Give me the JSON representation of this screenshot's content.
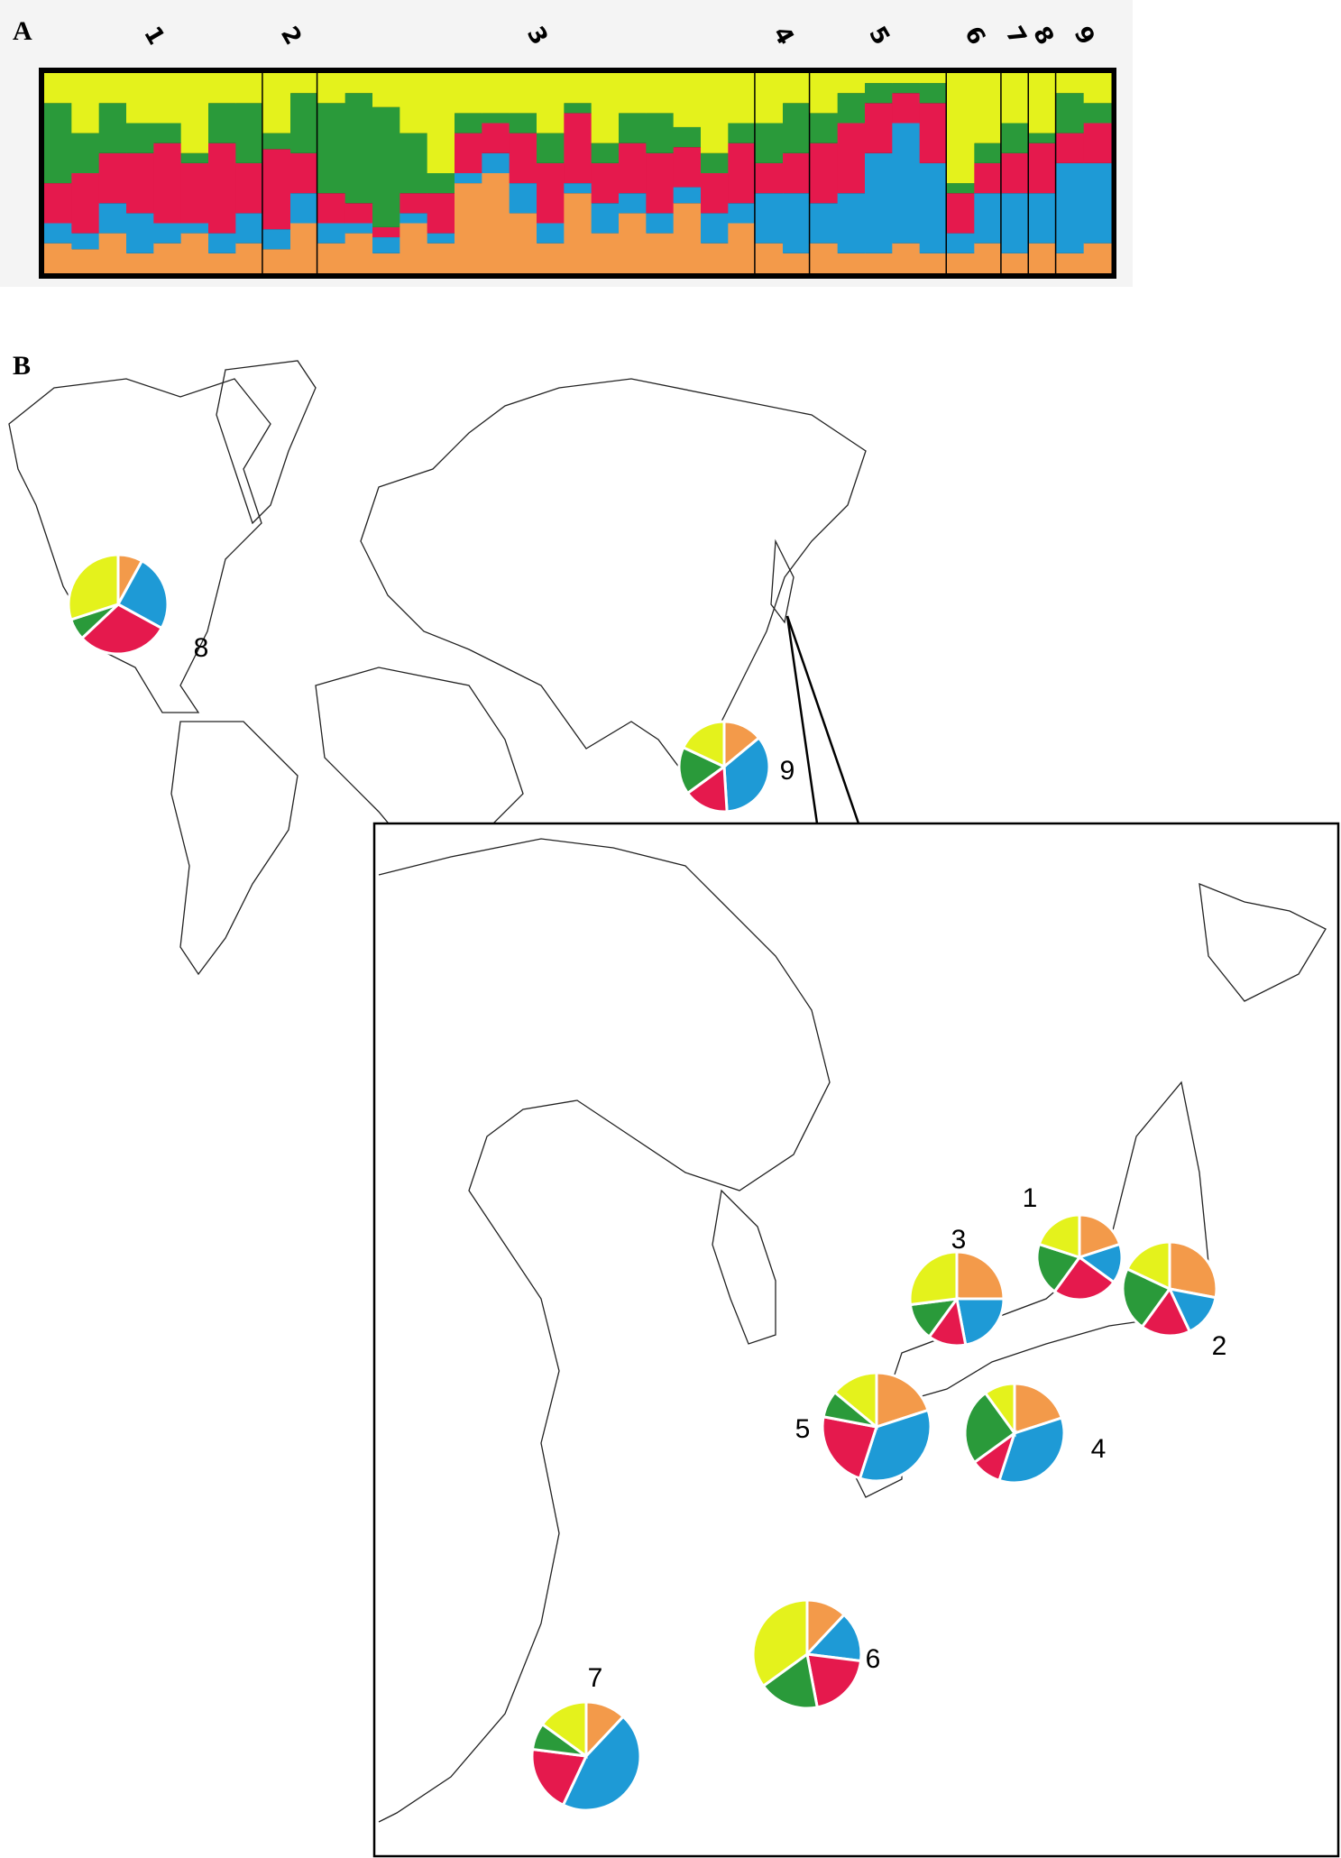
{
  "chart_data": [
    {
      "type": "structure",
      "panel_label": "A",
      "colors": [
        "#f39a4a",
        "#1e9ad6",
        "#e5194d",
        "#2a9a3a",
        "#e4f21c"
      ],
      "groups": [
        {
          "label": "1",
          "bars": [
            [
              15,
              10,
              20,
              40,
              15
            ],
            [
              12,
              8,
              30,
              20,
              30
            ],
            [
              20,
              15,
              25,
              25,
              15
            ],
            [
              10,
              20,
              30,
              15,
              25
            ],
            [
              15,
              10,
              40,
              10,
              25
            ],
            [
              20,
              5,
              30,
              5,
              40
            ],
            [
              10,
              10,
              45,
              20,
              15
            ],
            [
              15,
              15,
              25,
              30,
              15
            ]
          ]
        },
        {
          "label": "2",
          "bars": [
            [
              12,
              10,
              40,
              8,
              30
            ],
            [
              25,
              15,
              20,
              30,
              10
            ]
          ]
        },
        {
          "label": "3",
          "bars": [
            [
              15,
              10,
              15,
              45,
              15
            ],
            [
              20,
              5,
              10,
              55,
              10
            ],
            [
              10,
              8,
              5,
              60,
              17
            ],
            [
              25,
              5,
              10,
              30,
              30
            ],
            [
              15,
              5,
              20,
              10,
              50
            ],
            [
              45,
              5,
              20,
              10,
              20
            ],
            [
              50,
              10,
              15,
              5,
              20
            ],
            [
              30,
              15,
              25,
              10,
              20
            ],
            [
              15,
              10,
              30,
              15,
              30
            ],
            [
              40,
              5,
              35,
              5,
              15
            ],
            [
              20,
              15,
              20,
              10,
              35
            ],
            [
              30,
              10,
              25,
              15,
              20
            ],
            [
              20,
              10,
              30,
              20,
              20
            ],
            [
              35,
              8,
              20,
              10,
              27
            ],
            [
              15,
              15,
              20,
              10,
              40
            ],
            [
              25,
              10,
              30,
              10,
              25
            ]
          ]
        },
        {
          "label": "4",
          "bars": [
            [
              15,
              25,
              15,
              20,
              25
            ],
            [
              10,
              30,
              20,
              25,
              15
            ]
          ]
        },
        {
          "label": "5",
          "bars": [
            [
              15,
              20,
              30,
              15,
              20
            ],
            [
              10,
              30,
              35,
              15,
              10
            ],
            [
              10,
              50,
              25,
              10,
              5
            ],
            [
              15,
              60,
              15,
              5,
              5
            ],
            [
              10,
              45,
              30,
              10,
              5
            ]
          ]
        },
        {
          "label": "6",
          "bars": [
            [
              10,
              10,
              20,
              5,
              55
            ],
            [
              15,
              25,
              15,
              10,
              35
            ]
          ]
        },
        {
          "label": "7",
          "bars": [
            [
              10,
              30,
              20,
              15,
              25
            ]
          ]
        },
        {
          "label": "8",
          "bars": [
            [
              15,
              25,
              25,
              5,
              30
            ]
          ]
        },
        {
          "label": "9",
          "bars": [
            [
              10,
              45,
              15,
              20,
              10
            ],
            [
              15,
              40,
              20,
              10,
              15
            ]
          ]
        }
      ]
    },
    {
      "type": "pie_map",
      "panel_label": "B",
      "colors": [
        "#f39a4a",
        "#1e9ad6",
        "#e5194d",
        "#2a9a3a",
        "#e4f21c"
      ],
      "pies": [
        {
          "label": "1",
          "values": [
            20,
            15,
            25,
            20,
            20
          ]
        },
        {
          "label": "2",
          "values": [
            28,
            15,
            17,
            22,
            18
          ]
        },
        {
          "label": "3",
          "values": [
            25,
            22,
            13,
            13,
            27
          ]
        },
        {
          "label": "4",
          "values": [
            20,
            35,
            10,
            25,
            10
          ]
        },
        {
          "label": "5",
          "values": [
            20,
            35,
            23,
            8,
            14
          ]
        },
        {
          "label": "6",
          "values": [
            12,
            15,
            20,
            18,
            35
          ]
        },
        {
          "label": "7",
          "values": [
            12,
            45,
            20,
            8,
            15
          ]
        },
        {
          "label": "8",
          "values": [
            8,
            25,
            30,
            7,
            30
          ]
        },
        {
          "label": "9",
          "values": [
            14,
            35,
            16,
            17,
            18
          ]
        }
      ]
    }
  ]
}
